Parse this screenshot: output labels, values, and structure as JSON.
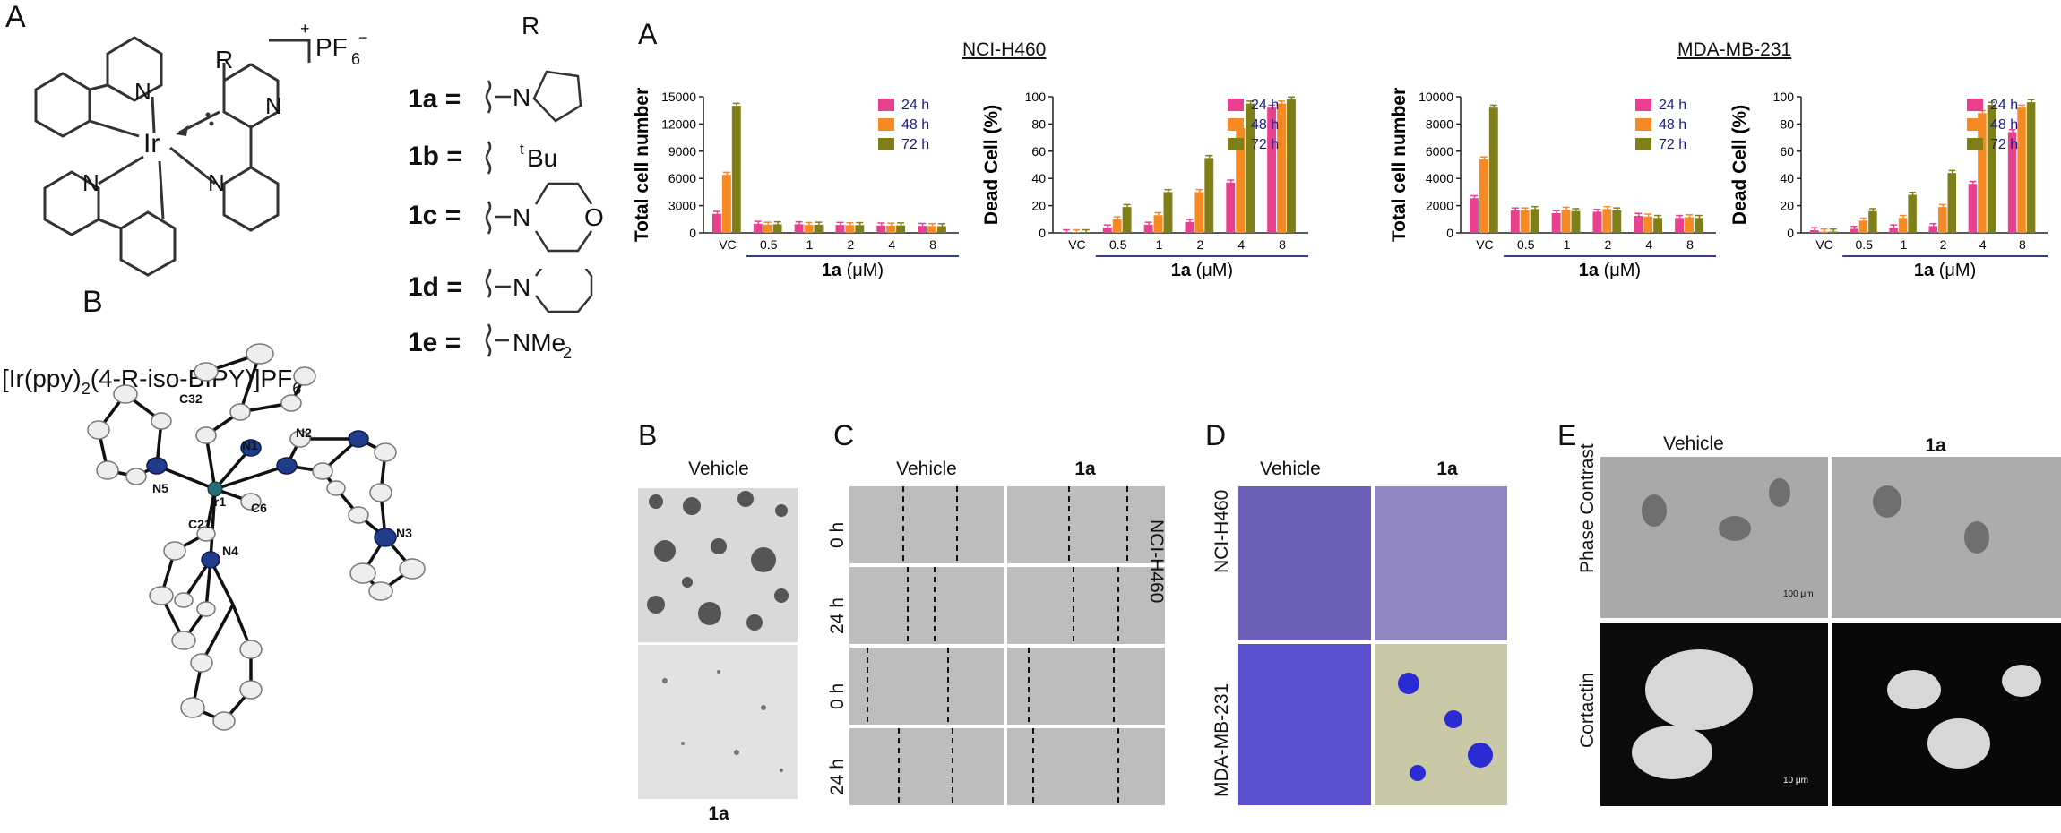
{
  "figure": {
    "panel_labels": {
      "main_A": "A",
      "chart_A": "A",
      "B_structure": "B",
      "B_img": "B",
      "C": "C",
      "D": "D",
      "E": "E"
    },
    "chem": {
      "r_top": "R",
      "r_side": "R",
      "counterion": "PF",
      "counterion_sub": "6",
      "counterion_sup": "+",
      "counterion_sup2": "−",
      "metal": "Ir",
      "atom_n": "N",
      "atom_o": "O",
      "tbu": "Bu",
      "tbu_sup": "t",
      "nme2": "NMe",
      "nme2_sub": "2",
      "series": [
        {
          "id": "1a =",
          "sub": "pyrrolidinyl"
        },
        {
          "id": "1b =",
          "sub": "tBu"
        },
        {
          "id": "1c =",
          "sub": "morpholinyl"
        },
        {
          "id": "1d =",
          "sub": "piperidinyl"
        },
        {
          "id": "1e =",
          "sub": "NMe2"
        }
      ],
      "formula_parts": [
        "[Ir(ppy)",
        "2",
        "(4-R-iso-BIPY)]PF",
        "6"
      ]
    },
    "crystal_labels": [
      "C32",
      "N1",
      "N2",
      "N5",
      "Ir1",
      "C6",
      "C21",
      "N4",
      "N3"
    ],
    "group_titles": {
      "left": "NCI-H460",
      "right": "MDA-MB-231"
    },
    "xaxis_group_label": "1a",
    "xaxis_group_unit": "(μM)",
    "panel_B_img": {
      "top": "Vehicle",
      "bottom": "1a"
    },
    "panel_C": {
      "col1": "Vehicle",
      "col2": "1a",
      "rows": [
        "0 h",
        "24 h",
        "0 h",
        "24 h"
      ],
      "side": [
        "NCI-H460"
      ]
    },
    "panel_D": {
      "col1": "Vehicle",
      "col2": "1a",
      "rows": [
        "NCI-H460",
        "MDA-MB-231"
      ]
    },
    "panel_E": {
      "col1": "Vehicle",
      "col2": "1a",
      "rows": [
        "Phase Contrast",
        "Cortactin"
      ],
      "scale1": "100 μm",
      "scale2": "10 μm"
    },
    "colors": {
      "24h": "#e8408f",
      "48h": "#f58a24",
      "72h": "#7f7f1a",
      "axis": "#3b3b8f",
      "legend_text": "#1a1a8c"
    }
  },
  "chart_data": [
    {
      "type": "bar",
      "categories": [
        "VC",
        "0.5",
        "1",
        "2",
        "4",
        "8"
      ],
      "ylabel": "Total cell number",
      "ylim": [
        0,
        15000
      ],
      "yticks": [
        0,
        3000,
        6000,
        9000,
        12000,
        15000
      ],
      "series": [
        {
          "name": "24 h",
          "values": [
            2100,
            1000,
            950,
            880,
            820,
            770
          ]
        },
        {
          "name": "48 h",
          "values": [
            6400,
            900,
            870,
            850,
            800,
            750
          ]
        },
        {
          "name": "72 h",
          "values": [
            14000,
            950,
            900,
            860,
            830,
            740
          ]
        }
      ]
    },
    {
      "type": "bar",
      "categories": [
        "VC",
        "0.5",
        "1",
        "2",
        "4",
        "8"
      ],
      "ylabel": "Dead Cell (%)",
      "ylim": [
        0,
        100
      ],
      "yticks": [
        0,
        20,
        40,
        60,
        80,
        100
      ],
      "series": [
        {
          "name": "24 h",
          "values": [
            0.5,
            4,
            6,
            8,
            37,
            92
          ]
        },
        {
          "name": "48 h",
          "values": [
            0.5,
            10,
            13,
            30,
            77,
            95
          ]
        },
        {
          "name": "72 h",
          "values": [
            0.5,
            19,
            30,
            55,
            95,
            98
          ]
        }
      ]
    },
    {
      "type": "bar",
      "categories": [
        "VC",
        "0.5",
        "1",
        "2",
        "4",
        "8"
      ],
      "ylabel": "Total cell number",
      "ylim": [
        0,
        10000
      ],
      "yticks": [
        0,
        2000,
        4000,
        6000,
        8000,
        10000
      ],
      "series": [
        {
          "name": "24 h",
          "values": [
            2550,
            1650,
            1450,
            1550,
            1250,
            1100
          ]
        },
        {
          "name": "48 h",
          "values": [
            5400,
            1650,
            1700,
            1750,
            1200,
            1150
          ]
        },
        {
          "name": "72 h",
          "values": [
            9200,
            1750,
            1600,
            1650,
            1100,
            1100
          ]
        }
      ]
    },
    {
      "type": "bar",
      "categories": [
        "VC",
        "0.5",
        "1",
        "2",
        "4",
        "8"
      ],
      "ylabel": "Dead Cell (%)",
      "ylim": [
        0,
        100
      ],
      "yticks": [
        0,
        20,
        40,
        60,
        80,
        100
      ],
      "series": [
        {
          "name": "24 h",
          "values": [
            2,
            3,
            4,
            5,
            36,
            74
          ]
        },
        {
          "name": "48 h",
          "values": [
            1,
            9,
            11,
            19,
            88,
            92
          ]
        },
        {
          "name": "72 h",
          "values": [
            1,
            16,
            28,
            44,
            94,
            96
          ]
        }
      ]
    }
  ]
}
